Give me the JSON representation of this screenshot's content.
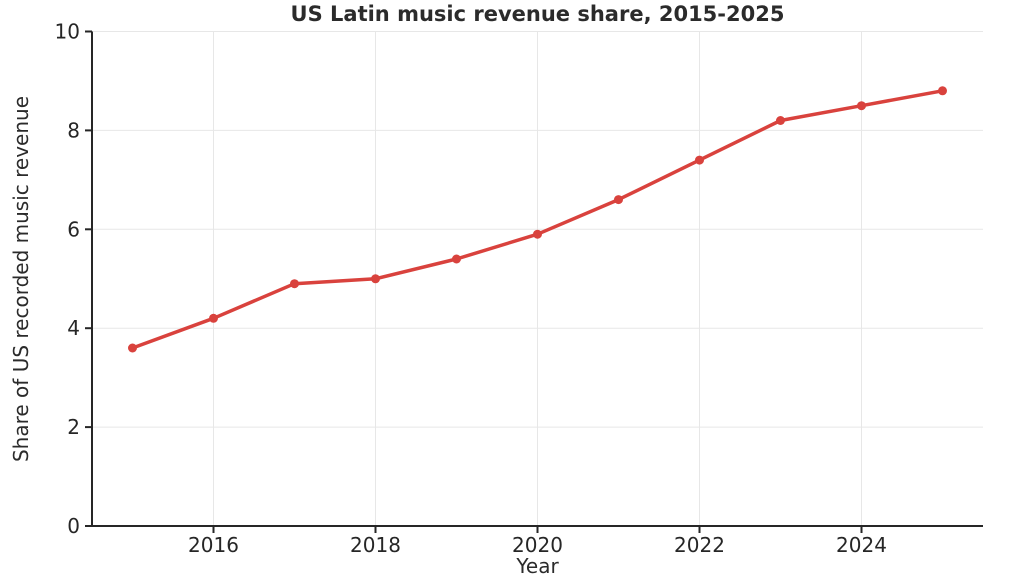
{
  "chart_data": {
    "type": "line",
    "title": "US Latin music revenue share, 2015-2025",
    "xlabel": "Year",
    "ylabel": "Share of US recorded music revenue",
    "x": [
      2015,
      2016,
      2017,
      2018,
      2019,
      2020,
      2021,
      2022,
      2023,
      2024,
      2025
    ],
    "series": [
      {
        "name": "US Latin music revenue share",
        "values": [
          3.6,
          4.2,
          4.9,
          5.0,
          5.4,
          5.9,
          6.6,
          7.4,
          8.2,
          8.5,
          8.8
        ]
      }
    ],
    "xlim": [
      2014.5,
      2025.5
    ],
    "ylim": [
      0,
      10
    ],
    "x_ticks": [
      2016,
      2018,
      2020,
      2022,
      2024
    ],
    "y_ticks": [
      0,
      2,
      4,
      6,
      8,
      10
    ],
    "grid": true,
    "legend": "none",
    "line_color": "#d9423d",
    "marker": "circle"
  },
  "style": {
    "background_color": "#ffffff",
    "grid_color": "#e7e7e7",
    "spine_color": "#262626",
    "text_color": "#262626"
  }
}
